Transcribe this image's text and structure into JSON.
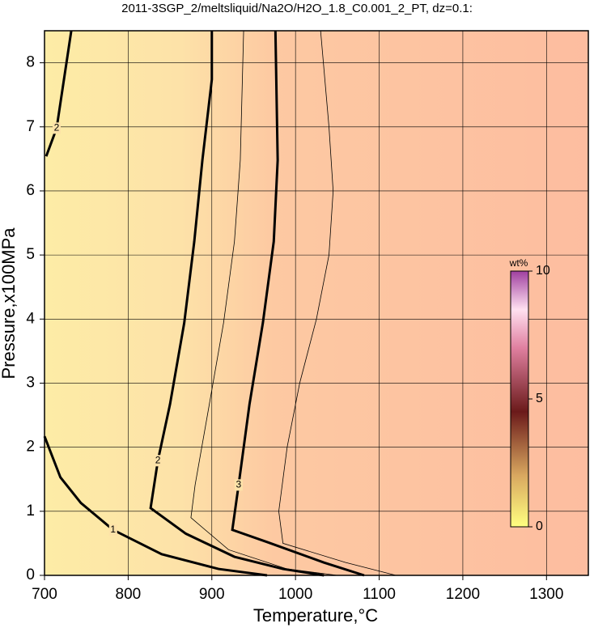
{
  "chart_data": {
    "type": "contour",
    "title": "2011-3SGP_2/meltsliquid/Na2O/H2O_1.8_C0.001_2_PT, dz=0.1:",
    "x_label": "Temperature,°C",
    "y_label": "Pressure,x100MPa",
    "xlim": [
      700,
      1350
    ],
    "xticks": [
      700,
      800,
      900,
      1000,
      1100,
      1200,
      1300
    ],
    "ylim": [
      0,
      8.5
    ],
    "yticks": [
      0,
      1,
      2,
      3,
      4,
      5,
      6,
      7,
      8
    ],
    "grid": true,
    "contours": [
      {
        "label": "1",
        "level": 1,
        "x": [
          700,
          719,
          743.5,
          782,
          840,
          908,
          966
        ],
        "y": [
          2.17,
          1.53,
          1.13,
          0.71,
          0.33,
          0.1,
          0
        ]
      },
      {
        "label": "2",
        "level": 2,
        "x": [
          732,
          714.5,
          702
        ],
        "y": [
          8.5,
          6.98,
          6.54
        ]
      },
      {
        "label": "2",
        "level": 2,
        "x": [
          900,
          900,
          888.7,
          879,
          867,
          850,
          835.5,
          826.8,
          869,
          927,
          985,
          1034
        ],
        "y": [
          8.5,
          7.74,
          6.48,
          5.21,
          3.94,
          2.67,
          1.79,
          1.05,
          0.65,
          0.29,
          0.1,
          0
        ]
      },
      {
        "label": "3",
        "level": 3,
        "x": [
          976,
          978.7,
          974,
          961,
          945,
          932,
          924.5,
          966,
          1034,
          1082
        ],
        "y": [
          8.5,
          6.48,
          5.21,
          3.94,
          2.67,
          1.41,
          0.71,
          0.52,
          0.2,
          0
        ]
      },
      {
        "level": 2.5,
        "x": [
          938,
          934,
          927,
          914,
          897,
          880,
          875,
          920,
          990,
          1050
        ],
        "y": [
          8.5,
          6.48,
          5.21,
          3.94,
          2.67,
          1.41,
          0.9,
          0.4,
          0.1,
          0
        ]
      },
      {
        "level": 3.5,
        "x": [
          1030,
          1040,
          1045,
          1040,
          1025,
          1005,
          990,
          980,
          985,
          1060,
          1120
        ],
        "y": [
          8.5,
          7,
          6,
          5,
          4,
          3,
          2,
          1,
          0.5,
          0.2,
          0
        ]
      }
    ],
    "colorbar": {
      "label": "wt%",
      "lim": [
        0,
        10
      ],
      "ticks": [
        0,
        5,
        10
      ]
    }
  }
}
